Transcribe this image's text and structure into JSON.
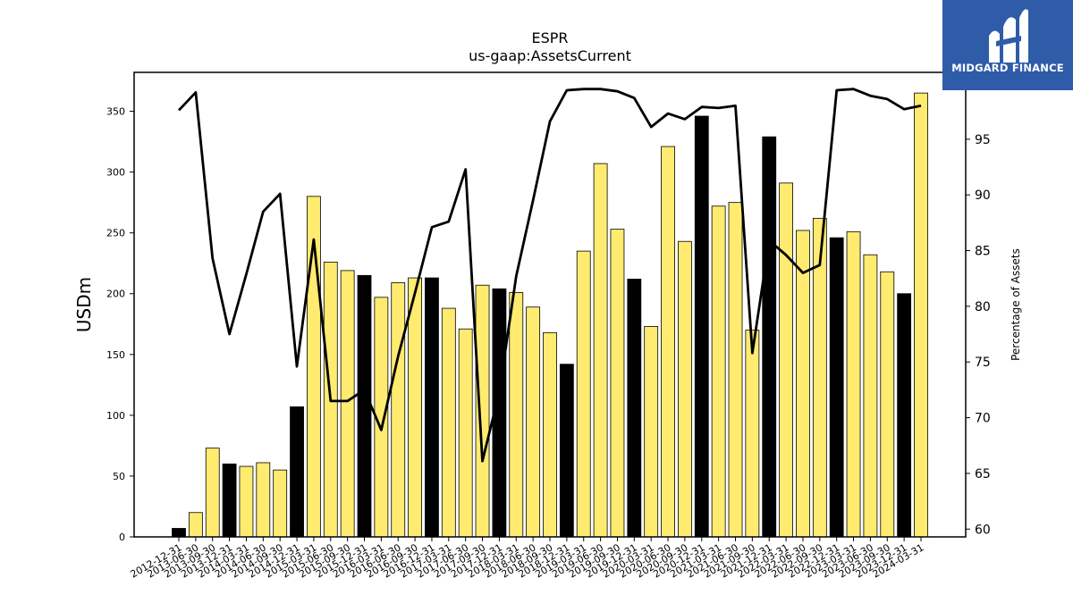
{
  "brand": {
    "name": "MIDGARD FINANCE",
    "background": "#2f5ca8"
  },
  "chart_data": {
    "type": "bar",
    "title": "ESPR",
    "subtitle": "us-gaap:AssetsCurrent",
    "ylabel": "USDm",
    "y2label": "Percentage of Assets",
    "ylim": [
      0,
      382
    ],
    "y2lim": [
      59.3,
      101.0
    ],
    "yticks": [
      0,
      50,
      100,
      150,
      200,
      250,
      300,
      350
    ],
    "y2ticks": [
      60,
      65,
      70,
      75,
      80,
      85,
      90,
      95
    ],
    "colors": {
      "q4_bar": "#000000",
      "other_bar": "#ffeb70",
      "line": "#000000"
    },
    "categories": [
      "2012-12-31",
      "2013-06-30",
      "2013-09-30",
      "2013-12-31",
      "2014-03-31",
      "2014-06-30",
      "2014-09-30",
      "2014-12-31",
      "2015-03-31",
      "2015-06-30",
      "2015-09-30",
      "2015-12-31",
      "2016-03-31",
      "2016-06-30",
      "2016-09-30",
      "2016-12-31",
      "2017-03-31",
      "2017-06-30",
      "2017-09-30",
      "2017-12-31",
      "2018-03-31",
      "2018-06-30",
      "2018-09-30",
      "2018-12-31",
      "2019-03-31",
      "2019-06-30",
      "2019-09-30",
      "2019-12-31",
      "2020-03-31",
      "2020-06-30",
      "2020-09-30",
      "2020-12-31",
      "2021-03-31",
      "2021-06-30",
      "2021-09-30",
      "2021-12-31",
      "2022-03-31",
      "2022-06-30",
      "2022-09-30",
      "2022-12-31",
      "2023-03-31",
      "2023-06-30",
      "2023-09-30",
      "2023-12-31",
      "2024-03-31"
    ],
    "series": [
      {
        "kind": "bar",
        "values": [
          7,
          20,
          73,
          60,
          58,
          61,
          55,
          107,
          280,
          226,
          219,
          215,
          197,
          209,
          213,
          213,
          188,
          171,
          207,
          204,
          201,
          189,
          168,
          142,
          235,
          307,
          253,
          212,
          173,
          321,
          243,
          346,
          272,
          275,
          170,
          329,
          291,
          252,
          262,
          246,
          251,
          232,
          218,
          200,
          365
        ]
      },
      {
        "kind": "line",
        "axis": "right",
        "values": [
          97.6,
          99.2,
          84.3,
          77.5,
          82.9,
          88.5,
          90.1,
          74.6,
          86.0,
          71.5,
          71.5,
          72.5,
          68.9,
          75.5,
          81.2,
          87.1,
          87.6,
          92.3,
          66.1,
          72.3,
          82.7,
          89.5,
          96.6,
          99.4,
          99.5,
          99.5,
          99.3,
          98.7,
          96.1,
          97.3,
          96.8,
          97.9,
          97.8,
          98.0,
          75.8,
          85.9,
          84.6,
          83.0,
          83.7,
          99.4,
          99.5,
          98.9,
          98.6,
          97.7,
          98.0
        ]
      }
    ]
  }
}
